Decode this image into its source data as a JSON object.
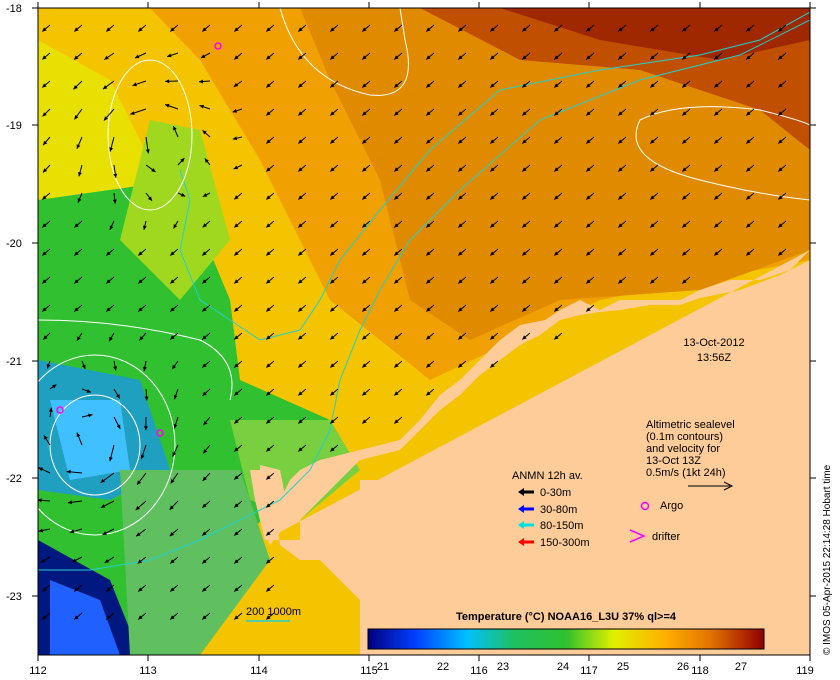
{
  "map": {
    "lon_ticks": [
      "112",
      "113",
      "114",
      "115",
      "116",
      "117",
      "118",
      "119"
    ],
    "lat_ticks": [
      "-18",
      "-19",
      "-20",
      "-21",
      "-22",
      "-23"
    ],
    "datetime": {
      "date": "13-Oct-2012",
      "time": "13:56Z"
    },
    "altimetry_note": [
      "Altimetric sealevel",
      "(0.1m contours)",
      "and velocity for",
      "13-Oct 13Z",
      "0.5m/s (1kt 24h)"
    ],
    "anmn": {
      "title": "ANMN 12h av.",
      "items": [
        {
          "label": "0-30m",
          "color": "#000000"
        },
        {
          "label": "30-80m",
          "color": "#0000ff"
        },
        {
          "label": "80-150m",
          "color": "#00e0e0"
        },
        {
          "label": "150-300m",
          "color": "#ff0000"
        }
      ]
    },
    "markers": {
      "argo": "Argo",
      "drifter": "drifter",
      "argo_color": "#ff00ff"
    },
    "depth_contours": "200  1000m",
    "colorbar": {
      "title": "Temperature (°C) NOAA16_L3U 37% ql>=4",
      "ticks": [
        "21",
        "22",
        "23",
        "24",
        "25",
        "26",
        "27"
      ]
    },
    "credit": "© IMOS 05-Apr-2015 22:14:28 Hobart time"
  }
}
